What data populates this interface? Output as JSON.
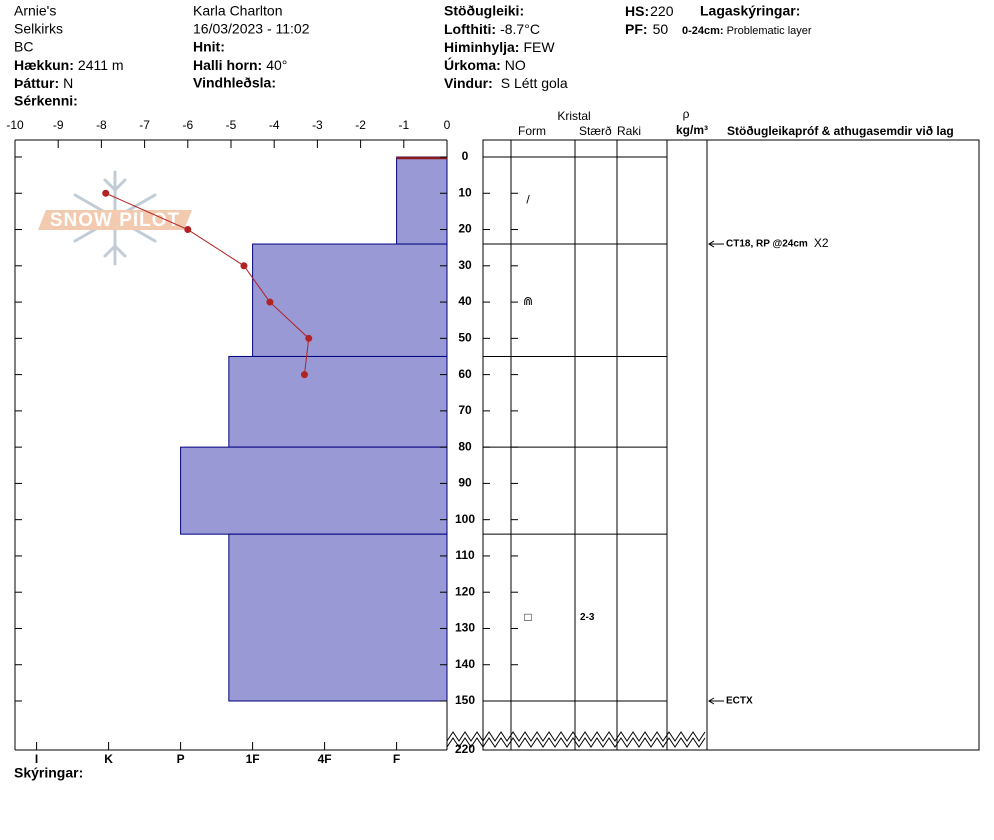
{
  "header": {
    "location": "Arnie's",
    "range": "Selkirks",
    "region": "BC",
    "elevation": {
      "label": "Hækkun:",
      "value": "2411 m"
    },
    "aspect": {
      "label": "Þáttur:",
      "value": "N"
    },
    "features": {
      "label": "Sérkenni:"
    },
    "observer": "Karla Charlton",
    "datetime": "16/03/2023 - 11:02",
    "coords": {
      "label": "Hnit:"
    },
    "slope": {
      "label": "Halli horn:",
      "value": "40°"
    },
    "wind_loading": {
      "label": "Vindhleðsla:"
    },
    "stability": {
      "label": "Stöðugleiki:"
    },
    "air_temp": {
      "label": "Lofthiti:",
      "value": "-8.7°C"
    },
    "sky": {
      "label": "Himinhylja:",
      "value": "FEW"
    },
    "precip": {
      "label": "Úrkoma:",
      "value": "NO"
    },
    "wind": {
      "label": "Vindur:",
      "value": "S Létt gola"
    },
    "hs": {
      "label": "HS:",
      "value": 220
    },
    "pf": {
      "label": "PF:",
      "value": 50
    },
    "layer_notes": {
      "label": "Lagaskýringar:",
      "items": [
        {
          "label": "0-24cm:",
          "value": "Problematic layer"
        }
      ]
    },
    "notes": {
      "label": "Skýringar:"
    },
    "logo": "SNOW PILOT"
  },
  "chart_data": {
    "type": "snow_profile",
    "columns": {
      "crystal": "Kristal",
      "form": "Form",
      "size": "Stærð",
      "moisture": "Raki",
      "density": "ρ",
      "density_unit": "kg/m³",
      "tests": "Stöðugleikapróf & athugasemdir við lag"
    },
    "xlim": [
      -10,
      0
    ],
    "xticks": [
      -10,
      -9,
      -8,
      -7,
      -6,
      -5,
      -4,
      -3,
      -2,
      -1,
      0
    ],
    "ylim": [
      0,
      220
    ],
    "ybreak": 150,
    "yticks": [
      0,
      10,
      20,
      30,
      40,
      50,
      60,
      70,
      80,
      90,
      100,
      110,
      120,
      130,
      140,
      150,
      220
    ],
    "hlim": [
      6.3,
      0.3
    ],
    "hticks": [
      {
        "value": 6,
        "label": "I"
      },
      {
        "value": 5,
        "label": "K"
      },
      {
        "value": 4,
        "label": "P"
      },
      {
        "value": 3,
        "label": "1F"
      },
      {
        "value": 2,
        "label": "4F"
      },
      {
        "value": 1,
        "label": "F"
      }
    ],
    "temperature": {
      "color": "#b22222",
      "depth": [
        10,
        20,
        30,
        40,
        50,
        60
      ],
      "temp": [
        -7.9,
        -6.0,
        -4.7,
        -4.1,
        -3.2,
        -3.3
      ]
    },
    "layer_color": "#9999d6",
    "layers": [
      {
        "top": 0,
        "bottom": 24,
        "hardness": 1
      },
      {
        "top": 24,
        "bottom": 55,
        "hardness": 3
      },
      {
        "top": 55,
        "bottom": 80,
        "hardness": 3.33
      },
      {
        "top": 80,
        "bottom": 104,
        "hardness": 4
      },
      {
        "top": 104,
        "bottom": 150,
        "hardness": 3.33
      }
    ],
    "grains": [
      {
        "depth": 12,
        "form": "/"
      },
      {
        "depth": 40,
        "form": "⋒"
      },
      {
        "depth": 127,
        "form": "□",
        "size": "2-3"
      }
    ],
    "tests": [
      {
        "depth": 24,
        "text": "CT18, RP @24cm",
        "note": "X2"
      },
      {
        "depth": 150,
        "text": "ECTX"
      }
    ]
  }
}
